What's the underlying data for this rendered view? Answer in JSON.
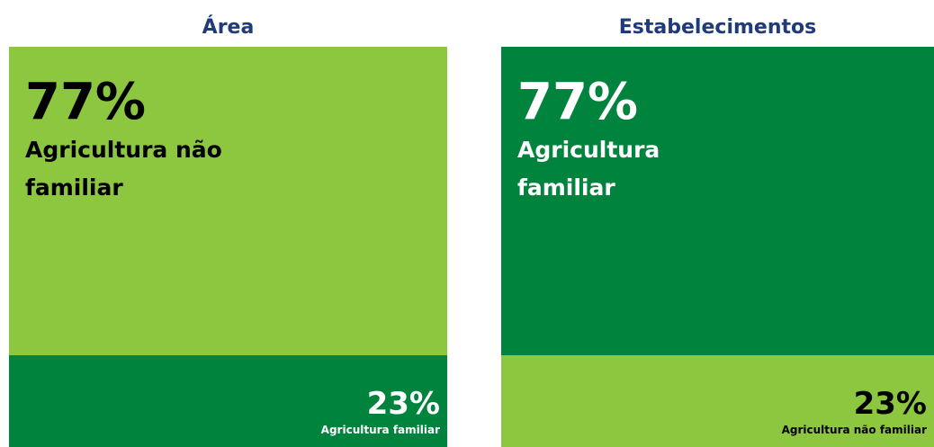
{
  "chart_data": [
    {
      "type": "stacked-box",
      "title": "Área",
      "categories": [
        "Agricultura não familiar",
        "Agricultura familiar"
      ],
      "values": [
        77,
        23
      ],
      "value_labels": [
        "77%",
        "23%"
      ],
      "colors": [
        "#8dc63f",
        "#00843d"
      ]
    },
    {
      "type": "stacked-box",
      "title": "Estabelecimentos",
      "categories": [
        "Agricultura familiar",
        "Agricultura não familiar"
      ],
      "values": [
        77,
        23
      ],
      "value_labels": [
        "77%",
        "23%"
      ],
      "colors": [
        "#00843d",
        "#8dc63f"
      ]
    }
  ]
}
